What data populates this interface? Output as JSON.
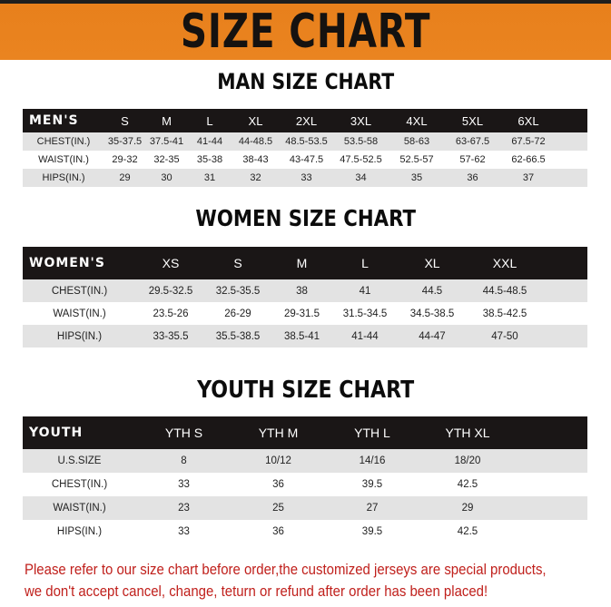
{
  "banner": {
    "title": "SIZE CHART"
  },
  "men": {
    "title": "MAN SIZE CHART",
    "header": [
      "MEN'S",
      "S",
      "M",
      "L",
      "XL",
      "2XL",
      "3XL",
      "4XL",
      "5XL",
      "6XL"
    ],
    "rows": [
      [
        "CHEST(IN.)",
        "35-37.5",
        "37.5-41",
        "41-44",
        "44-48.5",
        "48.5-53.5",
        "53.5-58",
        "58-63",
        "63-67.5",
        "67.5-72"
      ],
      [
        "WAIST(IN.)",
        "29-32",
        "32-35",
        "35-38",
        "38-43",
        "43-47.5",
        "47.5-52.5",
        "52.5-57",
        "57-62",
        "62-66.5"
      ],
      [
        "HIPS(IN.)",
        "29",
        "30",
        "31",
        "32",
        "33",
        "34",
        "35",
        "36",
        "37"
      ]
    ]
  },
  "women": {
    "title": "WOMEN SIZE CHART",
    "header": [
      "WOMEN'S",
      "XS",
      "S",
      "M",
      "L",
      "XL",
      "XXL"
    ],
    "rows": [
      [
        "CHEST(IN.)",
        "29.5-32.5",
        "32.5-35.5",
        "38",
        "41",
        "44.5",
        "44.5-48.5"
      ],
      [
        "WAIST(IN.)",
        "23.5-26",
        "26-29",
        "29-31.5",
        "31.5-34.5",
        "34.5-38.5",
        "38.5-42.5"
      ],
      [
        "HIPS(IN.)",
        "33-35.5",
        "35.5-38.5",
        "38.5-41",
        "41-44",
        "44-47",
        "47-50"
      ]
    ]
  },
  "youth": {
    "title": "YOUTH SIZE CHART",
    "header": [
      "YOUTH",
      "YTH S",
      "YTH M",
      "YTH L",
      "YTH XL"
    ],
    "rows": [
      [
        "U.S.SIZE",
        "8",
        "10/12",
        "14/16",
        "18/20"
      ],
      [
        "CHEST(IN.)",
        "33",
        "36",
        "39.5",
        "42.5"
      ],
      [
        "WAIST(IN.)",
        "23",
        "25",
        "27",
        "29"
      ],
      [
        "HIPS(IN.)",
        "33",
        "36",
        "39.5",
        "42.5"
      ]
    ]
  },
  "footer": {
    "line1": "Please refer to our size chart before order,the customized jerseys are special products,",
    "line2": "we don't accept cancel, change, teturn or refund after order has been placed!"
  },
  "colors": {
    "banner": "#e8801c",
    "header_row": "#1a1616",
    "alt_row": "#e3e3e3",
    "footer_text": "#c0201c"
  }
}
